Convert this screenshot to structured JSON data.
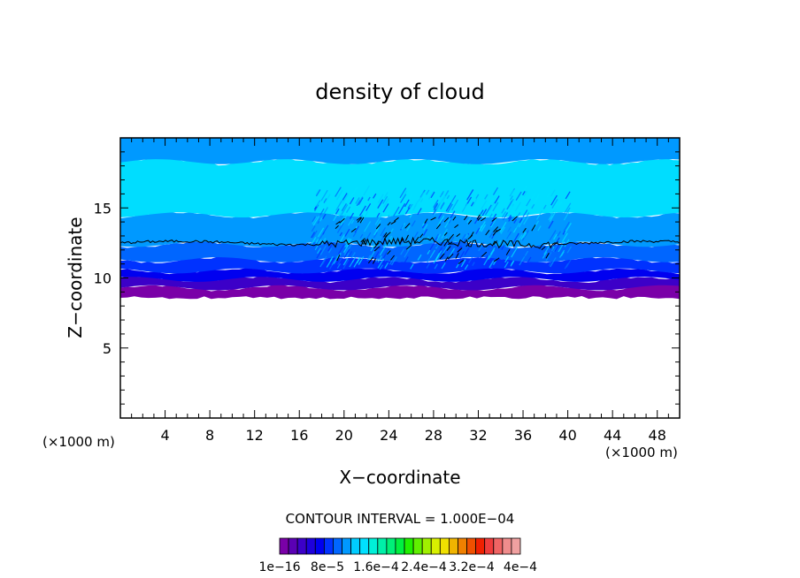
{
  "chart_data": {
    "type": "heatmap",
    "title": "density of cloud",
    "xlabel": "X−coordinate",
    "ylabel": "Z−coordinate",
    "x_unit_left": "(×1000 m)",
    "x_unit_right": "(×1000 m)",
    "xlim": [
      0,
      50
    ],
    "ylim": [
      0,
      20
    ],
    "x_ticks": [
      4,
      8,
      12,
      16,
      20,
      24,
      28,
      32,
      36,
      40,
      44,
      48
    ],
    "x_tick_labels": [
      "4",
      "8",
      "12",
      "16",
      "20",
      "24",
      "28",
      "32",
      "36",
      "40",
      "44",
      "48"
    ],
    "y_ticks": [
      5,
      10,
      15
    ],
    "y_tick_labels": [
      "5",
      "10",
      "15"
    ],
    "contour_interval_text": "CONTOUR INTERVAL = 1.000E−04",
    "colorbar": {
      "colors": [
        "#7a00a8",
        "#5a00b4",
        "#3c00c8",
        "#1e00dc",
        "#0000f0",
        "#0032ff",
        "#0066ff",
        "#0099ff",
        "#00ccff",
        "#00e0ff",
        "#00f0d8",
        "#00f0a8",
        "#00f078",
        "#00f040",
        "#20f000",
        "#60f000",
        "#a0f000",
        "#d8f000",
        "#f0e000",
        "#f0b400",
        "#f08000",
        "#f05000",
        "#f02000",
        "#f03c3c",
        "#f06464",
        "#f08c8c",
        "#f0a0a0"
      ],
      "labels": [
        "1e−16",
        "8e−5",
        "1.6e−4",
        "2.4e−4",
        "3.2e−4",
        "4e−4"
      ]
    },
    "cloud_layers": [
      {
        "z_bottom": 8.6,
        "z_top": 9.3,
        "color": "#7a00a8"
      },
      {
        "z_bottom": 9.3,
        "z_top": 9.9,
        "color": "#3c00c8"
      },
      {
        "z_bottom": 9.9,
        "z_top": 10.5,
        "color": "#0000f0"
      },
      {
        "z_bottom": 10.5,
        "z_top": 11.3,
        "color": "#0032ff"
      },
      {
        "z_bottom": 11.3,
        "z_top": 12.4,
        "color": "#0066ff"
      },
      {
        "z_bottom": 12.4,
        "z_top": 14.5,
        "color": "#0099ff"
      },
      {
        "z_bottom": 14.5,
        "z_top": 18.3,
        "color": "#00ddff"
      },
      {
        "z_bottom": 18.3,
        "z_top": 20.0,
        "color": "#0099ff"
      }
    ],
    "contour_line_z": 12.5
  }
}
